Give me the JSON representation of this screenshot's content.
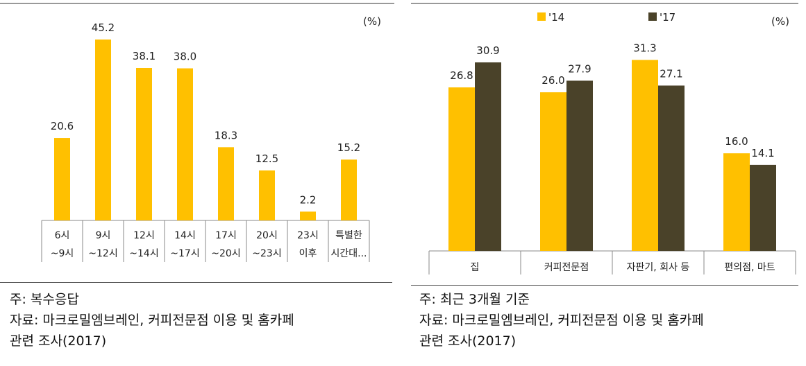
{
  "colors": {
    "bar_primary": "#FFC000",
    "bar_secondary": "#4A4229",
    "axis": "#888888",
    "rule": "#333333"
  },
  "left": {
    "unit_label": "(%)",
    "note": "주: 복수응답",
    "source_line1": "자료: 마크로밀엠브레인, 커피전문점 이용 및 홈카페",
    "source_line2": "관련 조사(2017)"
  },
  "right": {
    "unit_label": "(%)",
    "note": "주: 최근 3개월 기준",
    "source_line1": "자료: 마크로밀엠브레인, 커피전문점 이용 및 홈카페",
    "source_line2": "관련 조사(2017)"
  },
  "chart_data": [
    {
      "type": "bar",
      "title": "",
      "xlabel": "",
      "ylabel": "",
      "ylim": [
        0,
        50
      ],
      "grid": false,
      "categories": [
        [
          "6시",
          "~9시"
        ],
        [
          "9시",
          "~12시"
        ],
        [
          "12시",
          "~14시"
        ],
        [
          "14시",
          "~17시"
        ],
        [
          "17시",
          "~20시"
        ],
        [
          "20시",
          "~23시"
        ],
        [
          "23시",
          "이후"
        ],
        [
          "특별한",
          "시간대..."
        ]
      ],
      "values": [
        20.6,
        45.2,
        38.1,
        38.0,
        18.3,
        12.5,
        2.2,
        15.2
      ],
      "value_labels": [
        "20.6",
        "45.2",
        "38.1",
        "38.0",
        "18.3",
        "12.5",
        "2.2",
        "15.2"
      ]
    },
    {
      "type": "bar",
      "title": "",
      "xlabel": "",
      "ylabel": "",
      "ylim": [
        0,
        40
      ],
      "grid": false,
      "legend": "top-left",
      "categories": [
        "집",
        "커피전문점",
        "자판기, 회사 등",
        "편의점, 마트"
      ],
      "series": [
        {
          "name": "'14",
          "values": [
            26.8,
            26.0,
            31.3,
            16.0
          ],
          "value_labels": [
            "26.8",
            "26.0",
            "31.3",
            "16.0"
          ]
        },
        {
          "name": "'17",
          "values": [
            30.9,
            27.9,
            27.1,
            14.1
          ],
          "value_labels": [
            "30.9",
            "27.9",
            "27.1",
            "14.1"
          ]
        }
      ]
    }
  ]
}
